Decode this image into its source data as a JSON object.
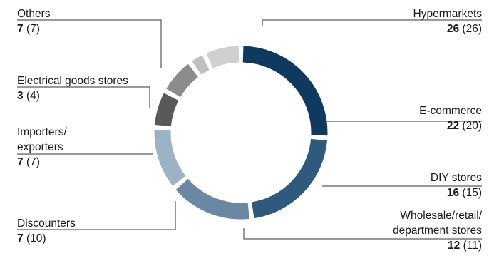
{
  "chart_data": {
    "type": "pie",
    "style": "donut",
    "unit": "%",
    "segments": [
      {
        "label": "Hypermarkets",
        "value": 26,
        "prior": 26,
        "color": "#0f3a5f"
      },
      {
        "label": "E-commerce",
        "value": 22,
        "prior": 20,
        "color": "#2e5a7e"
      },
      {
        "label": "DIY stores",
        "value": 16,
        "prior": 15,
        "color": "#6a88a3"
      },
      {
        "label": "Wholesale/retail/ department stores",
        "value": 12,
        "prior": 11,
        "color": "#9db2c5"
      },
      {
        "label": "Discounters",
        "value": 7,
        "prior": 10,
        "color": "#595959"
      },
      {
        "label": "Importers/ exporters",
        "value": 7,
        "prior": 7,
        "color": "#8c8c8c"
      },
      {
        "label": "Electrical goods stores",
        "value": 3,
        "prior": 4,
        "color": "#bfbfbf"
      },
      {
        "label": "Others",
        "value": 7,
        "prior": 7,
        "color": "#d0d0d0"
      }
    ]
  },
  "labels": [
    {
      "lines": [
        "Hypermarkets"
      ],
      "value": "26",
      "prior": "(26)"
    },
    {
      "lines": [
        "E-commerce"
      ],
      "value": "22",
      "prior": "(20)"
    },
    {
      "lines": [
        "DIY stores"
      ],
      "value": "16",
      "prior": "(15)"
    },
    {
      "lines": [
        "Wholesale/retail/",
        "department stores"
      ],
      "value": "12",
      "prior": "(11)"
    },
    {
      "lines": [
        "Discounters"
      ],
      "value": "7",
      "prior": "(10)"
    },
    {
      "lines": [
        "Importers/",
        "exporters"
      ],
      "value": "7",
      "prior": "(7)"
    },
    {
      "lines": [
        "Electrical goods stores"
      ],
      "value": "3",
      "prior": "(4)"
    },
    {
      "lines": [
        "Others"
      ],
      "value": "7",
      "prior": "(7)"
    }
  ]
}
